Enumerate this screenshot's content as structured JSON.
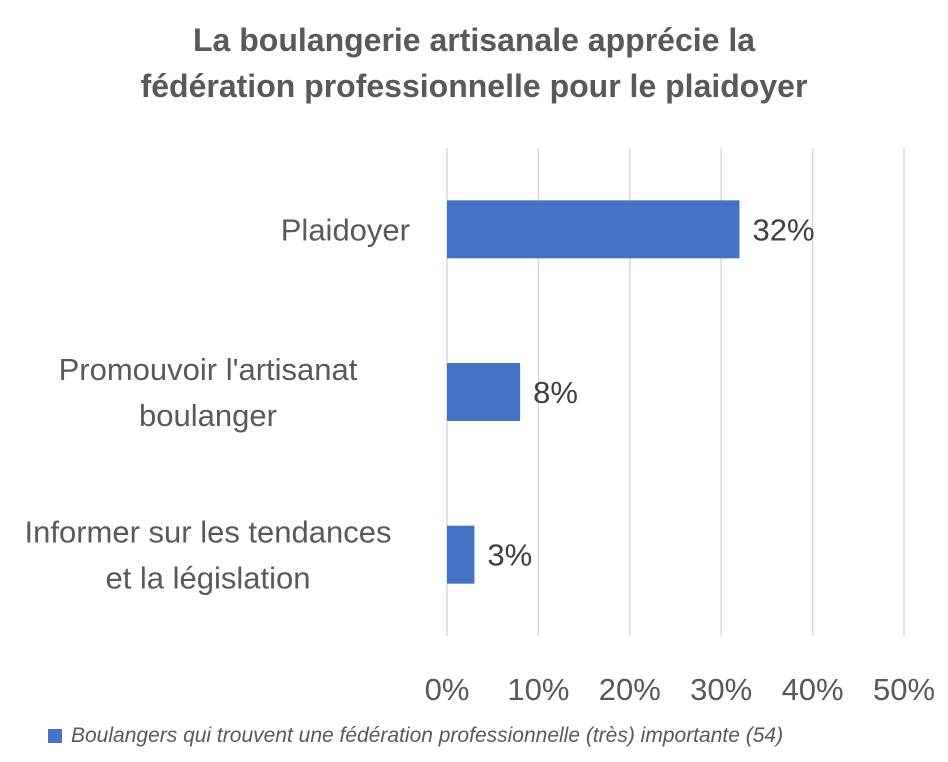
{
  "chart_data": {
    "type": "bar",
    "orientation": "horizontal",
    "title_lines": [
      "La boulangerie artisanale apprécie la",
      "fédération professionnelle pour le plaidoyer"
    ],
    "categories": [
      [
        "Plaidoyer"
      ],
      [
        "Promouvoir l'artisanat",
        "boulanger"
      ],
      [
        "Informer sur les tendances",
        "et la législation"
      ]
    ],
    "series": [
      {
        "name": "Boulangers qui trouvent une fédération professionnelle (très) importante (54)",
        "values": [
          32,
          8,
          3
        ],
        "value_labels": [
          "32%",
          "8%",
          "3%"
        ],
        "color": "#4472C4"
      }
    ],
    "x_ticks": [
      0,
      10,
      20,
      30,
      40,
      50
    ],
    "x_tick_labels": [
      "0%",
      "10%",
      "20%",
      "30%",
      "40%",
      "50%"
    ],
    "xlim": [
      0,
      50
    ],
    "grid": true,
    "legend_position": "bottom"
  }
}
